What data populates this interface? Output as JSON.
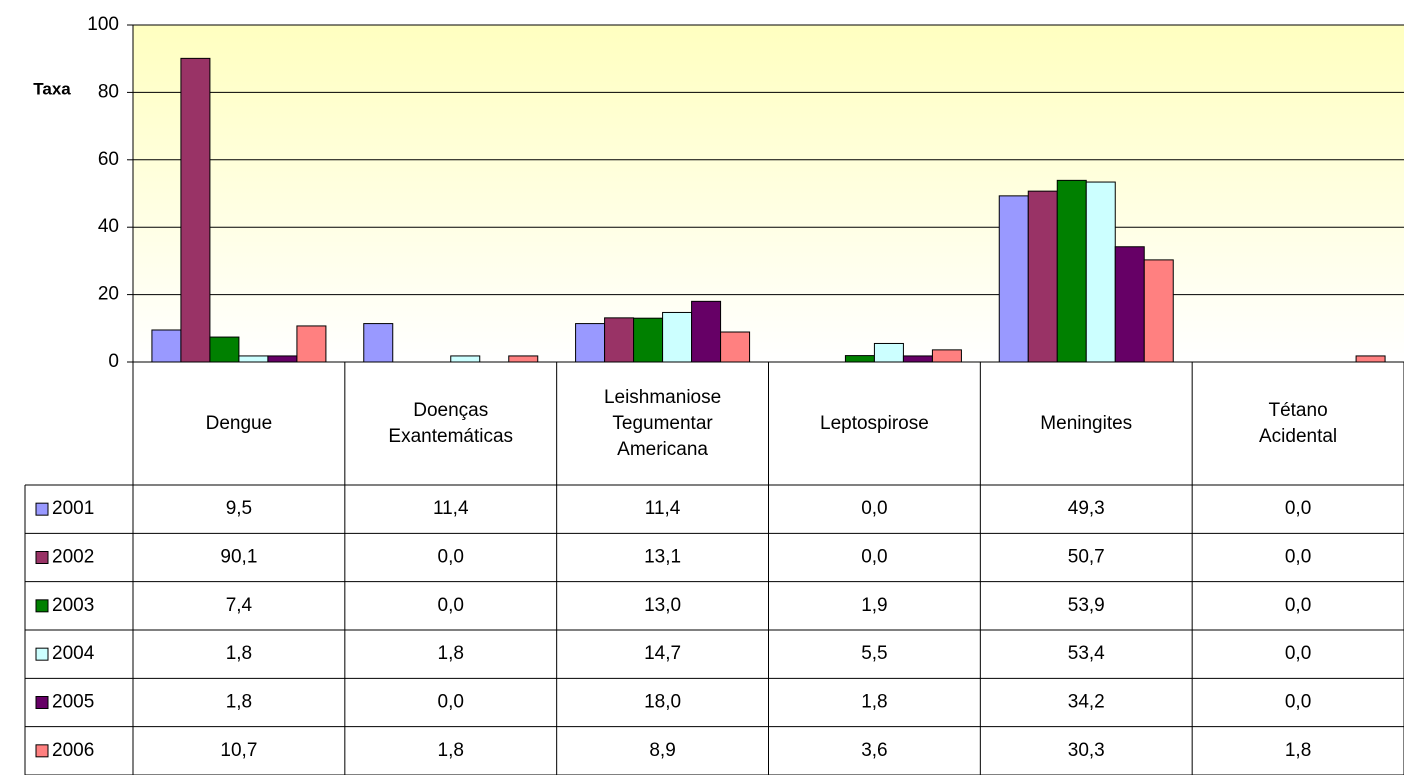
{
  "chart_data": {
    "type": "bar",
    "y_label": "Taxa",
    "categories": [
      "Dengue",
      "Doenças\nExantemáticas",
      "Leishmaniose\nTegumentar\nAmericana",
      "Leptospirose",
      "Meningites",
      "Tétano\nAcidental"
    ],
    "series": [
      {
        "name": "2001",
        "color": "#9999ff",
        "values": [
          9.5,
          11.4,
          11.4,
          0.0,
          49.3,
          0.0
        ],
        "value_labels": [
          "9,5",
          "11,4",
          "11,4",
          "0,0",
          "49,3",
          "0,0"
        ]
      },
      {
        "name": "2002",
        "color": "#993366",
        "values": [
          90.1,
          0.0,
          13.1,
          0.0,
          50.7,
          0.0
        ],
        "value_labels": [
          "90,1",
          "0,0",
          "13,1",
          "0,0",
          "50,7",
          "0,0"
        ]
      },
      {
        "name": "2003",
        "color": "#008000",
        "values": [
          7.4,
          0.0,
          13.0,
          1.9,
          53.9,
          0.0
        ],
        "value_labels": [
          "7,4",
          "0,0",
          "13,0",
          "1,9",
          "53,9",
          "0,0"
        ]
      },
      {
        "name": "2004",
        "color": "#ccffff",
        "values": [
          1.8,
          1.8,
          14.7,
          5.5,
          53.4,
          0.0
        ],
        "value_labels": [
          "1,8",
          "1,8",
          "14,7",
          "5,5",
          "53,4",
          "0,0"
        ]
      },
      {
        "name": "2005",
        "color": "#660066",
        "values": [
          1.8,
          0.0,
          18.0,
          1.8,
          34.2,
          0.0
        ],
        "value_labels": [
          "1,8",
          "0,0",
          "18,0",
          "1,8",
          "34,2",
          "0,0"
        ]
      },
      {
        "name": "2006",
        "color": "#ff8080",
        "values": [
          10.7,
          1.8,
          8.9,
          3.6,
          30.3,
          1.8
        ],
        "value_labels": [
          "10,7",
          "1,8",
          "8,9",
          "3,6",
          "30,3",
          "1,8"
        ]
      }
    ],
    "ylim": [
      0,
      100
    ],
    "yticks": [
      0,
      20,
      40,
      60,
      80,
      100
    ],
    "grid": true
  }
}
